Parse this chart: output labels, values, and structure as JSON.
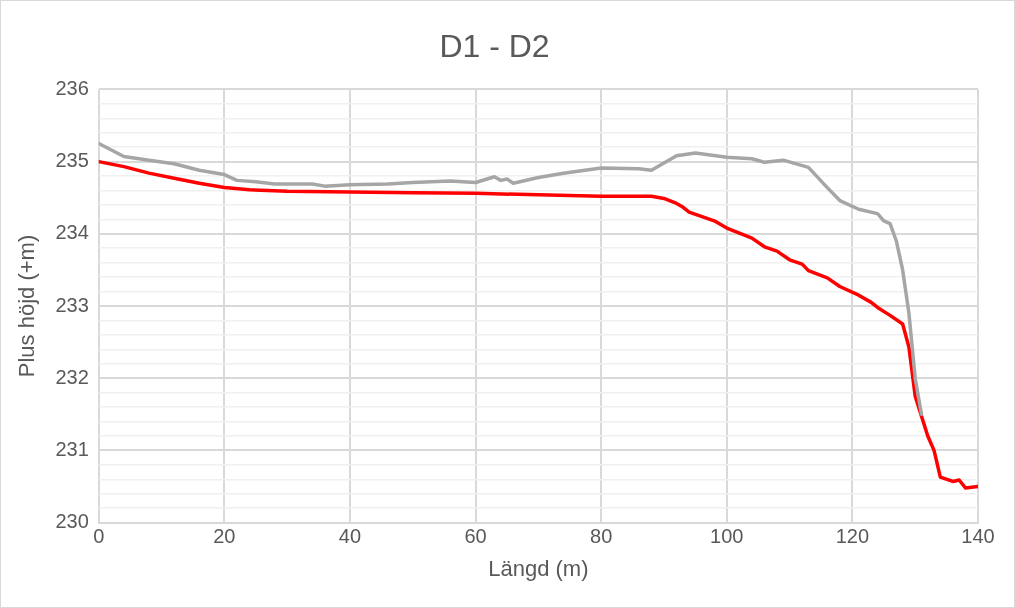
{
  "chart_data": {
    "type": "line",
    "title": "D1 - D2",
    "xlabel": "Längd (m)",
    "ylabel": "Plus höjd (+m)",
    "xlim": [
      0,
      140
    ],
    "xticks": [
      0,
      20,
      40,
      60,
      80,
      100,
      120,
      140
    ],
    "ylim": [
      230,
      236
    ],
    "yticks": [
      230,
      {
        "value": 230.2,
        "label": null
      },
      {
        "value": 230.4,
        "label": null
      },
      {
        "value": 230.6,
        "label": null
      },
      {
        "value": 230.8,
        "label": null
      },
      231,
      {
        "value": 231.2,
        "label": null
      },
      {
        "value": 231.4,
        "label": null
      },
      {
        "value": 231.6,
        "label": null
      },
      {
        "value": 231.8,
        "label": null
      },
      232,
      {
        "value": 232.2,
        "label": null
      },
      {
        "value": 232.4,
        "label": null
      },
      {
        "value": 232.6,
        "label": null
      },
      {
        "value": 232.8,
        "label": null
      },
      233,
      {
        "value": 233.2,
        "label": null
      },
      {
        "value": 233.4,
        "label": null
      },
      {
        "value": 233.6,
        "label": null
      },
      {
        "value": 233.8,
        "label": null
      },
      234,
      {
        "value": 234.2,
        "label": null
      },
      {
        "value": 234.4,
        "label": null
      },
      {
        "value": 234.6,
        "label": null
      },
      {
        "value": 234.8,
        "label": null
      },
      235,
      {
        "value": 235.2,
        "label": null
      },
      {
        "value": 235.4,
        "label": null
      },
      {
        "value": 235.6,
        "label": null
      },
      {
        "value": 235.8,
        "label": null
      },
      236
    ],
    "grid": true,
    "legend": false,
    "marker": "none",
    "line_style": "solid",
    "series": [
      {
        "color": "#a6a6a6",
        "x": [
          0,
          4,
          8,
          12,
          16,
          20,
          22,
          25,
          28,
          34,
          36,
          40,
          46,
          50,
          56,
          60,
          63,
          64,
          65,
          66,
          70,
          74,
          80,
          86,
          88,
          90,
          92,
          95,
          100,
          104,
          106,
          109,
          113,
          116,
          118,
          121,
          124,
          125,
          126,
          127,
          128,
          129,
          130,
          131
        ],
        "values": [
          235.25,
          235.07,
          235.02,
          234.97,
          234.88,
          234.82,
          234.74,
          234.72,
          234.69,
          234.69,
          234.66,
          234.68,
          234.69,
          234.71,
          234.73,
          234.71,
          234.79,
          234.74,
          234.76,
          234.7,
          234.78,
          234.84,
          234.91,
          234.9,
          234.88,
          234.98,
          235.08,
          235.12,
          235.06,
          235.04,
          234.99,
          235.02,
          234.92,
          234.64,
          234.46,
          234.34,
          234.28,
          234.18,
          234.14,
          233.9,
          233.5,
          232.9,
          232,
          231.5
        ]
      },
      {
        "color": "#ff0000",
        "x": [
          0,
          4,
          8,
          12,
          16,
          20,
          24,
          30,
          40,
          50,
          60,
          70,
          80,
          88,
          90,
          92,
          93,
          94,
          98,
          100,
          104,
          106,
          108,
          110,
          112,
          113,
          116,
          118,
          121,
          123,
          124,
          126,
          128,
          129,
          130,
          132,
          133,
          134,
          136,
          137,
          138,
          140
        ],
        "values": [
          235,
          234.93,
          234.84,
          234.77,
          234.7,
          234.64,
          234.61,
          234.59,
          234.58,
          234.57,
          234.56,
          234.54,
          234.52,
          234.52,
          234.49,
          234.42,
          234.37,
          234.3,
          234.18,
          234.08,
          233.94,
          233.82,
          233.76,
          233.64,
          233.58,
          233.49,
          233.39,
          233.27,
          233.15,
          233.05,
          232.98,
          232.87,
          232.75,
          232.43,
          231.75,
          231.2,
          231,
          230.63,
          230.57,
          230.59,
          230.48,
          230.5
        ]
      }
    ]
  }
}
